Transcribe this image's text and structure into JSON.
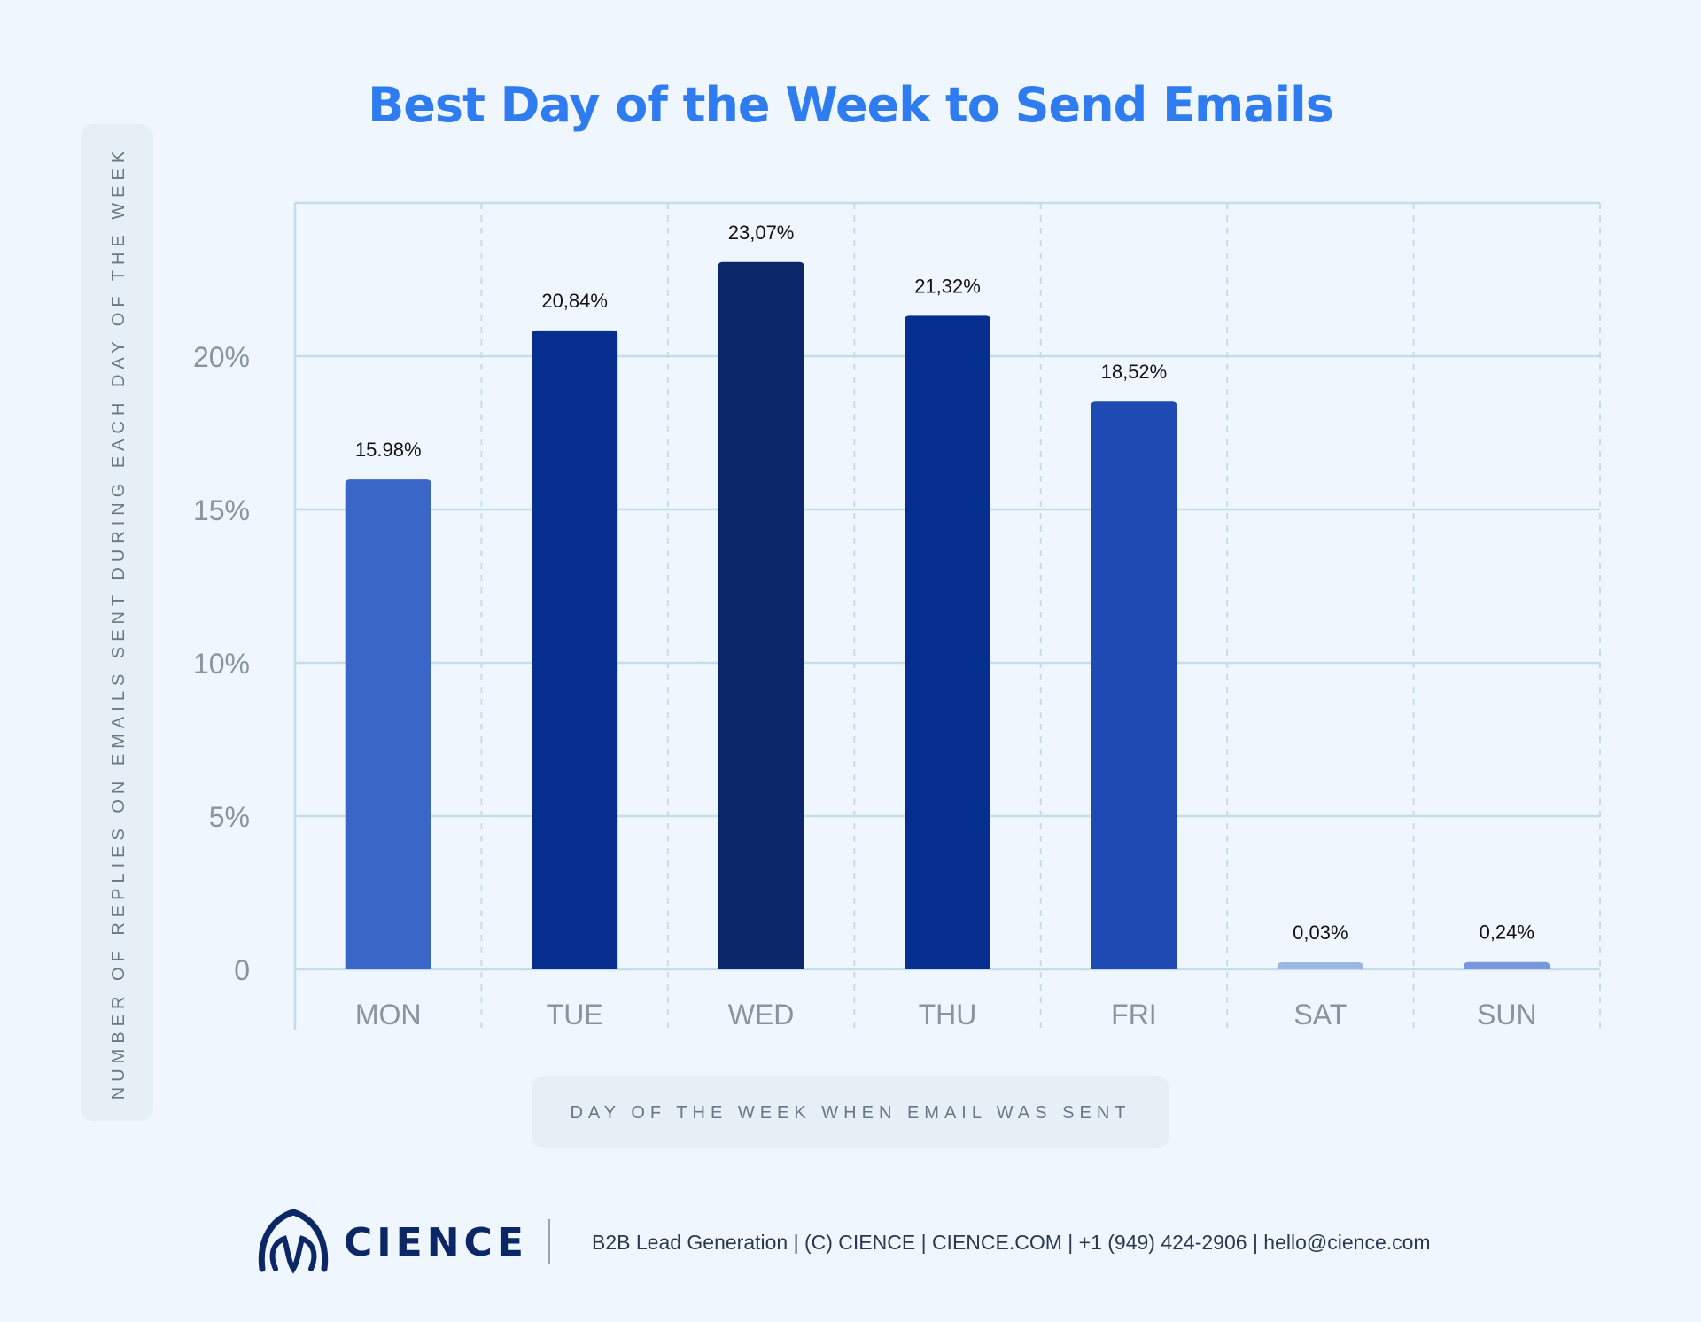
{
  "chart_data": {
    "type": "bar",
    "title": "Best Day of the Week to Send Emails",
    "xlabel": "DAY OF THE WEEK WHEN EMAIL WAS SENT",
    "ylabel": "NUMBER OF REPLIES ON EMAILS SENT DURING EACH DAY OF THE WEEK",
    "categories": [
      "MON",
      "TUE",
      "WED",
      "THU",
      "FRI",
      "SAT",
      "SUN"
    ],
    "values": [
      15.98,
      20.84,
      23.07,
      21.32,
      18.52,
      0.03,
      0.24
    ],
    "value_labels": [
      "15.98%",
      "20,84%",
      "23,07%",
      "21,32%",
      "18,52%",
      "0,03%",
      "0,24%"
    ],
    "bar_colors": [
      "#3a66c8",
      "#062e8f",
      "#0b2769",
      "#062e8f",
      "#1f49b3",
      "#9cb6e6",
      "#7898de"
    ],
    "yticks": [
      0,
      5,
      10,
      15,
      20
    ],
    "ytick_labels": [
      "0",
      "5%",
      "10%",
      "15%",
      "20%"
    ],
    "ylim": [
      0,
      25
    ],
    "grid": true
  },
  "footer": {
    "brand": "CIENCE",
    "text": "B2B Lead Generation | (C) CIENCE | CIENCE.COM | +1 (949) 424-2906 | hello@cience.com"
  },
  "colors": {
    "background": "#eff6fd",
    "title": "#2f7cf0",
    "brand": "#0c2766"
  }
}
